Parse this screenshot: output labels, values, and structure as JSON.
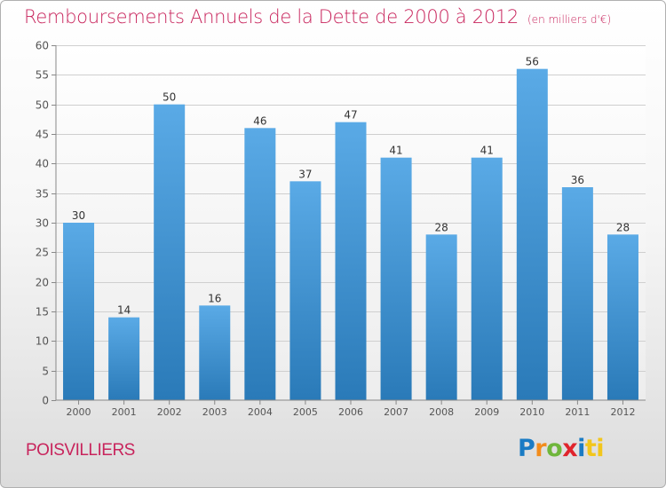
{
  "title": "Remboursements Annuels de la Dette de 2000 à 2012",
  "unit": "(en milliers d'€)",
  "commune": "POISVILLIERS",
  "logo": [
    "P",
    "r",
    "o",
    "x",
    "i",
    "ti"
  ],
  "colors": {
    "title": "#c8245c",
    "bar_top": "#5aaae6",
    "bar_bottom": "#2a7ab8",
    "grid": "#cfcfcf",
    "axis": "#555555"
  },
  "chart_data": {
    "type": "bar",
    "categories": [
      "2000",
      "2001",
      "2002",
      "2003",
      "2004",
      "2005",
      "2006",
      "2007",
      "2008",
      "2009",
      "2010",
      "2011",
      "2012"
    ],
    "values": [
      30,
      14,
      50,
      16,
      46,
      37,
      47,
      41,
      28,
      41,
      56,
      36,
      28
    ],
    "yticks": [
      0,
      5,
      10,
      15,
      20,
      25,
      30,
      35,
      40,
      45,
      50,
      55,
      60
    ],
    "ylim": [
      0,
      60
    ],
    "grid": true,
    "title": "Remboursements Annuels de la Dette de 2000 à 2012",
    "xlabel": "",
    "ylabel": ""
  }
}
